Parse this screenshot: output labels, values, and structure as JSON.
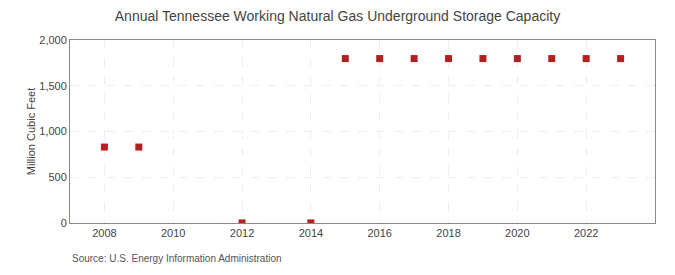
{
  "chart_data": {
    "type": "scatter",
    "title": "Annual Tennessee Working Natural Gas Underground Storage Capacity",
    "ylabel": "Million Cubic Feet",
    "annotations": [
      "Source: U.S. Energy Information Administration"
    ],
    "x": [
      2008,
      2009,
      2012,
      2014,
      2015,
      2016,
      2017,
      2018,
      2019,
      2020,
      2021,
      2022,
      2023
    ],
    "values": [
      830,
      830,
      1,
      1,
      1797,
      1797,
      1797,
      1797,
      1797,
      1797,
      1797,
      1797,
      1797
    ],
    "color": "#b22020",
    "marker": "square",
    "xlim": [
      2007.0,
      2024.0
    ],
    "xticks": [
      2008,
      2010,
      2012,
      2014,
      2016,
      2018,
      2020,
      2022
    ],
    "ylim": [
      0,
      2000
    ],
    "yticks": [
      0,
      500,
      {
        "value": 1000,
        "label": "1,000"
      },
      {
        "value": 1500,
        "label": "1,500"
      },
      {
        "value": 2000,
        "label": "2,000"
      }
    ],
    "grid": true
  }
}
